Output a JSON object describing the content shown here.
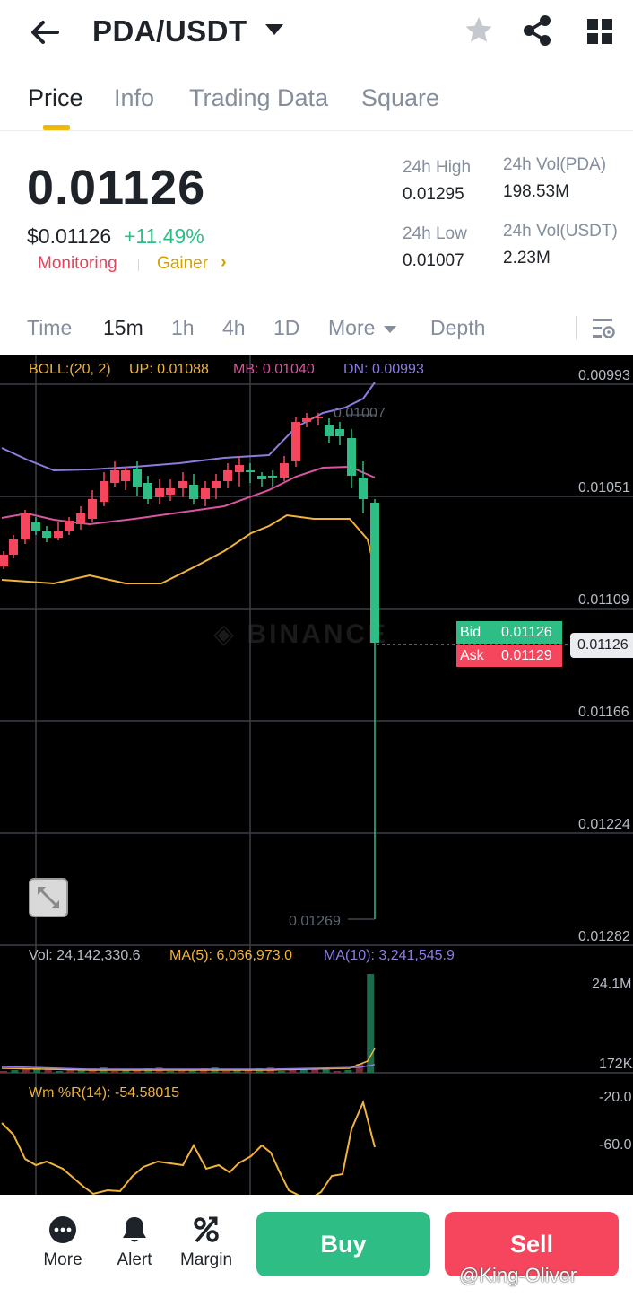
{
  "header": {
    "pair": "PDA/USDT"
  },
  "tabs": [
    "Price",
    "Info",
    "Trading Data",
    "Square"
  ],
  "ticker": {
    "last_price": "0.01126",
    "usd_price": "$0.01126",
    "change": "+11.49%",
    "tags": [
      "Monitoring",
      "Gainer"
    ],
    "stats": {
      "high_label": "24h High",
      "high": "0.01295",
      "low_label": "24h Low",
      "low": "0.01007",
      "vol_base_label": "24h Vol(PDA)",
      "vol_base": "198.53M",
      "vol_quote_label": "24h Vol(USDT)",
      "vol_quote": "2.23M"
    }
  },
  "intervals": {
    "items": [
      "Time",
      "15m",
      "1h",
      "4h",
      "1D",
      "More",
      "Depth"
    ],
    "active": "15m"
  },
  "chart": {
    "boll": {
      "label": "BOLL:(20, 2)",
      "up": "UP: 0.01088",
      "mb": "MB: 0.01040",
      "dn": "DN: 0.00993"
    },
    "price_axis": [
      "0.00993",
      "0.01051",
      "0.01109",
      "0.01166",
      "0.01224",
      "0.01282"
    ],
    "marker_low": "0.01007",
    "marker_high": "0.01269",
    "bid_label": "Bid",
    "bid": "0.01126",
    "ask_label": "Ask",
    "ask": "0.01129",
    "current": "0.01126",
    "volume": {
      "vol": "Vol: 24,142,330.6",
      "ma5": "MA(5): 6,066,973.0",
      "ma10": "MA(10): 3,241,545.9",
      "axis_top": "24.1M",
      "axis_bottom": "172K"
    },
    "wr": {
      "label": "Wm %R(14): -54.58015",
      "axis_top": "-20.0",
      "axis_mid": "-60.0"
    },
    "colors": {
      "up": "#2ebd85",
      "down": "#f6465d",
      "upper_band": "#8d7ce0",
      "middle_band": "#d9559f",
      "lower_band": "#f0b33b"
    }
  },
  "bottom": {
    "items": [
      "More",
      "Alert",
      "Margin"
    ],
    "buy": "Buy",
    "sell": "Sell",
    "watermark": "@King-Oliver"
  }
}
